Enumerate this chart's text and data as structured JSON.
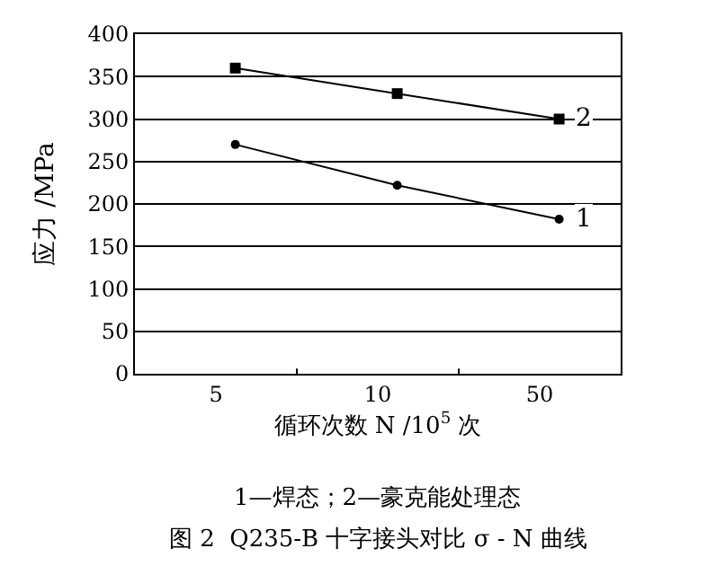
{
  "chart_data": {
    "type": "line",
    "title": "图 2  Q235-B 十字接头对比 σ - N 曲线",
    "xlabel": "循环次数 N /10$^{5}$ 次",
    "ylabel": "应力 /MPa",
    "categories": [
      "5",
      "10",
      "50"
    ],
    "series": [
      {
        "name": "1",
        "color": "#000000",
        "marker": "circle",
        "values": [
          270,
          222,
          182
        ]
      },
      {
        "name": "2",
        "color": "#000000",
        "marker": "square",
        "values": [
          360,
          330,
          300
        ]
      }
    ],
    "ylim": [
      0,
      400
    ],
    "yticks": [
      0,
      50,
      100,
      150,
      200,
      250,
      300,
      350,
      400
    ],
    "grid": "y",
    "line_style": "solid",
    "annotations": [
      "1—焊态；2—豪克能处理态"
    ]
  }
}
